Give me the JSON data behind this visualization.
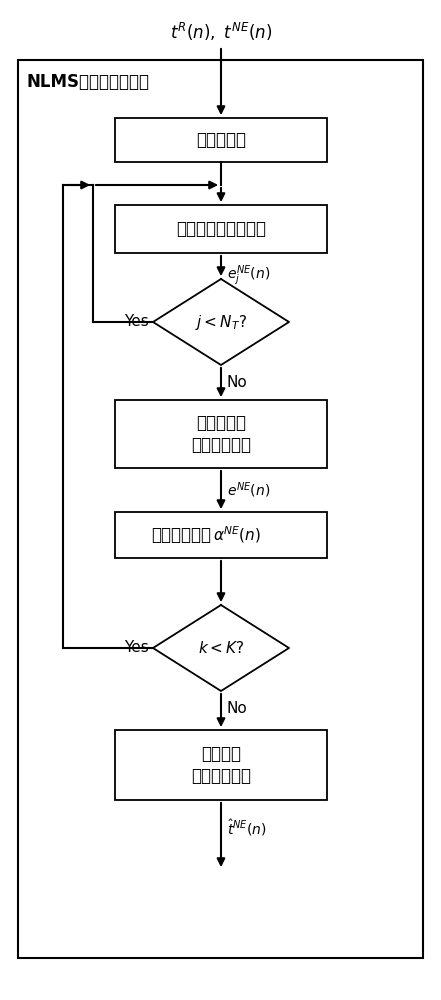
{
  "fig_width": 4.41,
  "fig_height": 10.0,
  "bg_color": "#ffffff",
  "border_color": "#000000",
  "box_color": "#ffffff",
  "text_color": "#000000",
  "input_label_math": "$t^{R}(n),\\ t^{NE}(n)$",
  "outer_box_label": "NLMS自适应滤波处理",
  "box1_label": "设置初始值",
  "box2_label": "计算单天线误差信号",
  "diamond1_label": "$j < N_T?$",
  "diamond1_yes": "Yes",
  "diamond1_no": "No",
  "arrow1_label": "$e_j^{NE}(n)$",
  "box3_line1": "构建多天线",
  "box3_line2": "误差信号矢量",
  "arrow2_label": "$e^{NE}(n)$",
  "box4_line1": "更新权值向量",
  "box4_math": "$\\alpha^{NE}(n)$",
  "diamond2_label": "$k<K?$",
  "diamond2_yes": "Yes",
  "diamond2_no": "No",
  "box5_line1": "构建近端",
  "box5_line2": "估计信号矩阵",
  "output_label": "$\\hat{t}^{NE}(n)$"
}
